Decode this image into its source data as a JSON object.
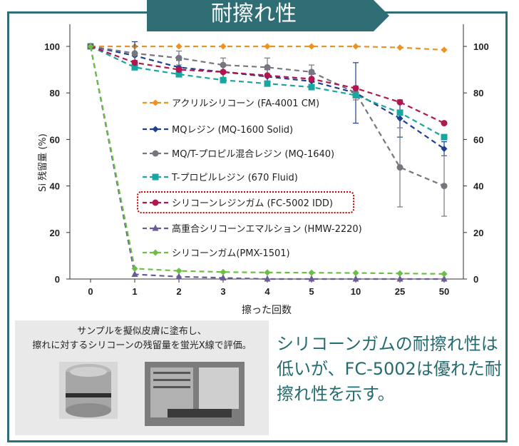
{
  "header": {
    "title": "耐擦れ性"
  },
  "colors": {
    "frame": "#2e6e74",
    "header_bg": "#2e6e74",
    "accent_text": "#246c70",
    "highlight_box": "#cc0000"
  },
  "caption": {
    "text": "サンプルを擬似皮膚に塗布し、\n擦れに対するシリコーンの残留量を蛍光X線で評価。",
    "images": [
      "cylindrical metal sample holder",
      "test apparatus"
    ]
  },
  "conclusion": {
    "text": "シリコーンガムの耐擦れ性は低いが、FC-5002は優れた耐擦れ性を示す。"
  },
  "chart_data": {
    "type": "line",
    "categories": [
      "0",
      "1",
      "2",
      "3",
      "4",
      "5",
      "10",
      "25",
      "50"
    ],
    "xlabel": "擦った回数",
    "ylabel": "Si 残留量 (%)",
    "ylim": [
      0,
      100
    ],
    "yticks": [
      0,
      20,
      40,
      60,
      80,
      100
    ],
    "secondary_y_axis": true,
    "grid": false,
    "legend_position": "inside-left",
    "highlighted_series": "シリコーンレジンガム (FC-5002 IDD)",
    "series": [
      {
        "name": "アクリルシリコーン (FA-4001 CM)",
        "color": "#f0901e",
        "marker": "diamond",
        "values": [
          100,
          100,
          100,
          100,
          100,
          100,
          100,
          99.5,
          98.5
        ]
      },
      {
        "name": "MQレジン (MQ-1600 Solid)",
        "color": "#1f3f8f",
        "marker": "diamond",
        "values": [
          100,
          96,
          91,
          89,
          87,
          85,
          80,
          69,
          56
        ],
        "errors": [
          0,
          6,
          3,
          3,
          3,
          3,
          13,
          8,
          3
        ]
      },
      {
        "name": "MQ/T-プロピル混合レジン (MQ-1640)",
        "color": "#76767e",
        "marker": "circle",
        "values": [
          100,
          97,
          95,
          92,
          91,
          89,
          80,
          48,
          40
        ],
        "errors": [
          0,
          3,
          3,
          3,
          4,
          3,
          3,
          17,
          13
        ]
      },
      {
        "name": "T-プロピルレジン (670 Fluid)",
        "color": "#19a6a1",
        "marker": "square",
        "values": [
          100,
          91,
          88,
          85.5,
          84,
          82.5,
          79,
          71.5,
          61
        ]
      },
      {
        "name": "シリコーンレジンガム (FC-5002 IDD)",
        "color": "#b0174f",
        "marker": "circle",
        "values": [
          100,
          93,
          90,
          89,
          87.5,
          86,
          82,
          76,
          67
        ]
      },
      {
        "name": "高重合シリコーンエマルション (HMW-2220)",
        "color": "#6a5b96",
        "marker": "triangle",
        "values": [
          100,
          2,
          1,
          0.5,
          0,
          0,
          0,
          0,
          0
        ]
      },
      {
        "name": "シリコーンガム(PMX-1501)",
        "color": "#6abf45",
        "marker": "diamond",
        "values": [
          100,
          4.5,
          3.5,
          3,
          2.8,
          2.7,
          2.6,
          2.4,
          2.2
        ]
      }
    ]
  }
}
